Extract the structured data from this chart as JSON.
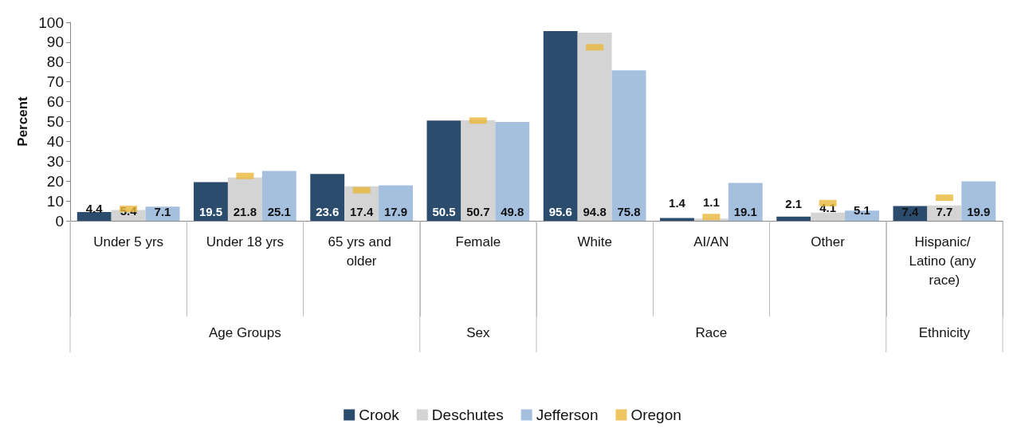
{
  "chart_data": {
    "type": "bar",
    "ylabel": "Percent",
    "categories": [
      "Under 5 yrs",
      "Under 18 yrs",
      "65 yrs and older",
      "Female",
      "White",
      "AI/AN",
      "Other",
      "Hispanic/ Latino (any race)"
    ],
    "series": [
      {
        "name": "Crook",
        "color": "#2c4c6e",
        "values": [
          4.4,
          19.5,
          23.6,
          50.5,
          95.6,
          1.4,
          2.1,
          7.4
        ],
        "value_labels": [
          "4.4",
          "19.5",
          "23.6",
          "50.5",
          "95.6",
          "1.4",
          "2.1",
          "7.4"
        ]
      },
      {
        "name": "Deschutes",
        "color": "#d4d4d4",
        "values": [
          5.4,
          21.8,
          17.4,
          50.7,
          94.8,
          1.1,
          4.1,
          7.7
        ],
        "value_labels": [
          "5.4",
          "21.8",
          "17.4",
          "50.7",
          "94.8",
          "1.1",
          "4.1",
          "7.7"
        ]
      },
      {
        "name": "Jefferson",
        "color": "#a4c0de",
        "values": [
          7.1,
          25.1,
          17.9,
          49.8,
          75.8,
          19.1,
          5.1,
          19.9
        ],
        "value_labels": [
          "7.1",
          "25.1",
          "17.9",
          "49.8",
          "75.8",
          "19.1",
          "5.1",
          "19.9"
        ]
      },
      {
        "name": "Oregon",
        "color": "#e8b83a",
        "type": "scatter",
        "values": [
          6.0,
          22.6,
          15.4,
          50.5,
          87.4,
          1.9,
          8.9,
          11.6
        ]
      }
    ],
    "annotations": [
      "Age Groups",
      "Sex",
      "Race",
      "Ethnicity"
    ],
    "ylim": [
      0,
      100
    ],
    "yticks": [
      0,
      10,
      20,
      30,
      40,
      50,
      60,
      70,
      80,
      90,
      100
    ],
    "grid": false,
    "legend": "bottom"
  }
}
